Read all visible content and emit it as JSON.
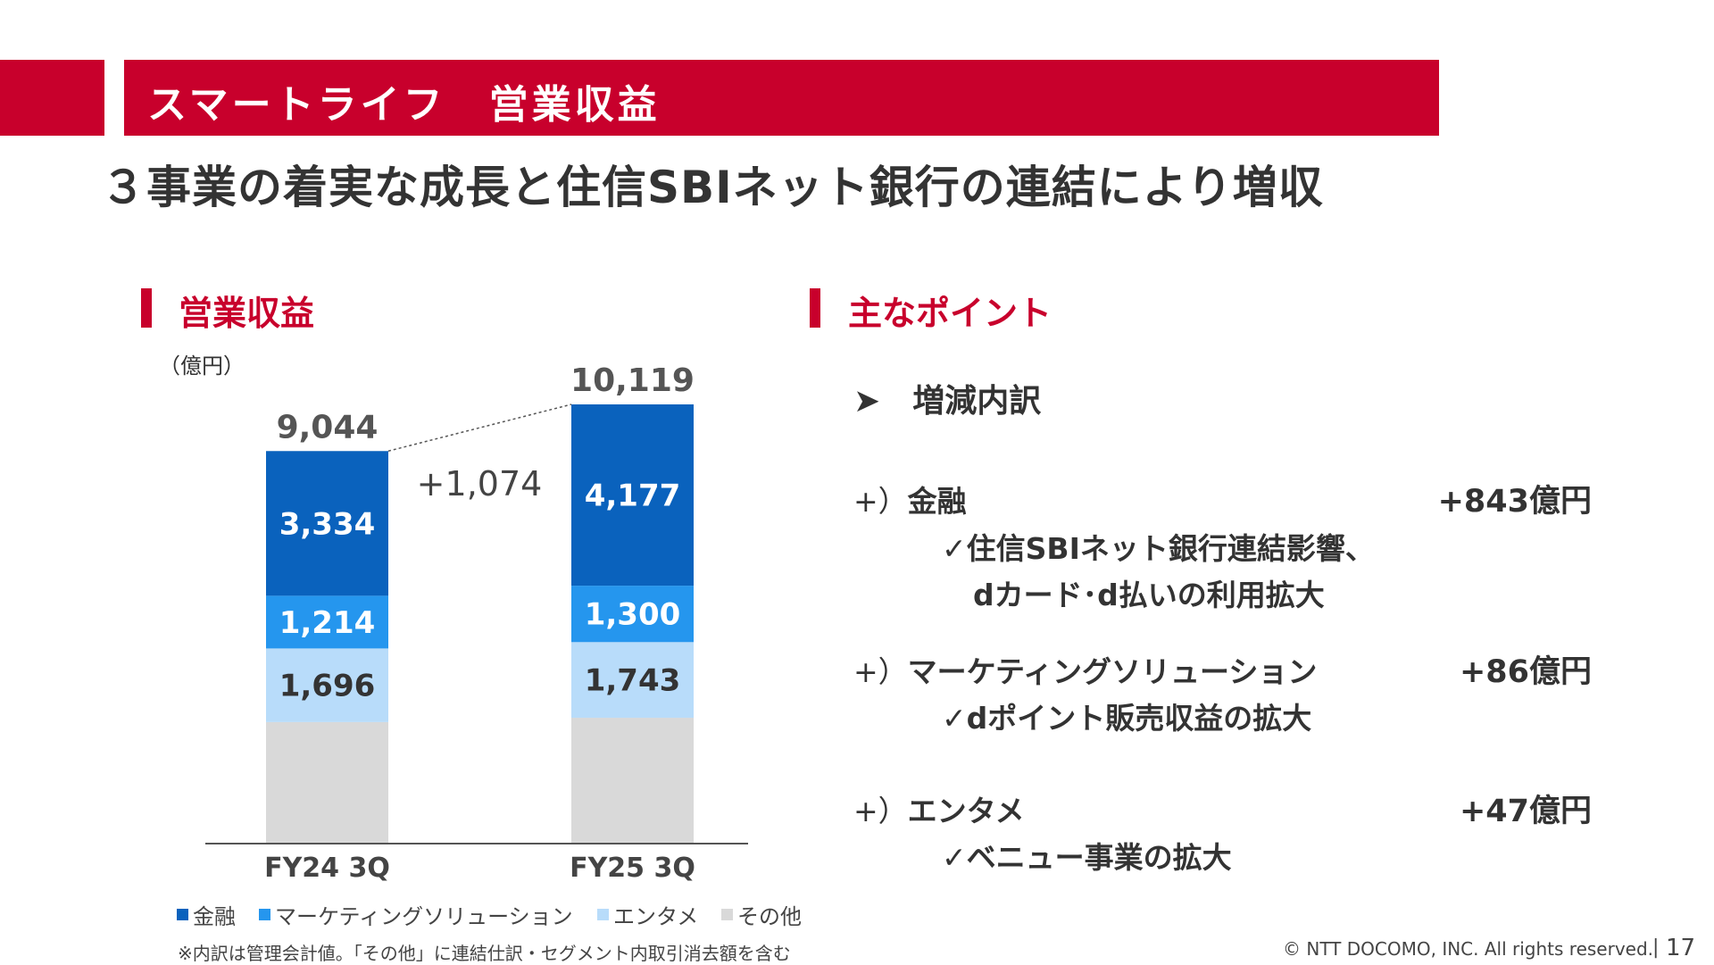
{
  "header": {
    "title": "スマートライフ　営業収益",
    "headline": "３事業の着実な成長と住信SBIネット銀行の連結により増収"
  },
  "chart_section": {
    "title": "営業収益",
    "unit": "（億円）",
    "diff_label": "+1,074",
    "note": "※内訳は管理会計値。「その他」に連結仕訳・セグメント内取引消去額を含む"
  },
  "chart_data": {
    "type": "bar",
    "stacked": true,
    "categories": [
      "FY24 3Q",
      "FY25 3Q"
    ],
    "totals": [
      9044,
      10119
    ],
    "total_labels": [
      "9,044",
      "10,119"
    ],
    "series": [
      {
        "name": "その他",
        "values": [
          2800,
          2899
        ],
        "color": "#d9d9d9"
      },
      {
        "name": "エンタメ",
        "values": [
          1696,
          1743
        ],
        "labels": [
          "1,696",
          "1,743"
        ],
        "color": "#b8dcfa"
      },
      {
        "name": "マーケティングソリューション",
        "values": [
          1214,
          1300
        ],
        "labels": [
          "1,214",
          "1,300"
        ],
        "color": "#2596ee"
      },
      {
        "name": "金融",
        "values": [
          3334,
          4177
        ],
        "labels": [
          "3,334",
          "4,177"
        ],
        "color": "#0a62bd"
      }
    ],
    "legend": {
      "placement": "bottom",
      "items": [
        {
          "label": "金融",
          "color": "#0a62bd"
        },
        {
          "label": "マーケティングソリューション",
          "color": "#2596ee"
        },
        {
          "label": "エンタメ",
          "color": "#b8dcfa"
        },
        {
          "label": "その他",
          "color": "#d9d9d9"
        }
      ]
    },
    "ylim": [
      0,
      10119
    ]
  },
  "points": {
    "title": "主なポイント",
    "subtitle": "増減内訳",
    "bullet": "➤",
    "items": [
      {
        "plus": "+）",
        "name": "金融",
        "value": "+843億円",
        "details": [
          "✓住信SBIネット銀行連結影響、",
          "dカード･d払いの利用拡大"
        ]
      },
      {
        "plus": "+）",
        "name": "マーケティングソリューション",
        "value": "+86億円",
        "details": [
          "✓dポイント販売収益の拡大"
        ]
      },
      {
        "plus": "+）",
        "name": "エンタメ",
        "value": "+47億円",
        "details": [
          "✓ベニュー事業の拡大"
        ]
      }
    ]
  },
  "footer": {
    "copyright": "© NTT DOCOMO, INC.  All rights reserved.",
    "separator": "|",
    "page": "17"
  },
  "colors": {
    "brand_red": "#c8002c"
  }
}
